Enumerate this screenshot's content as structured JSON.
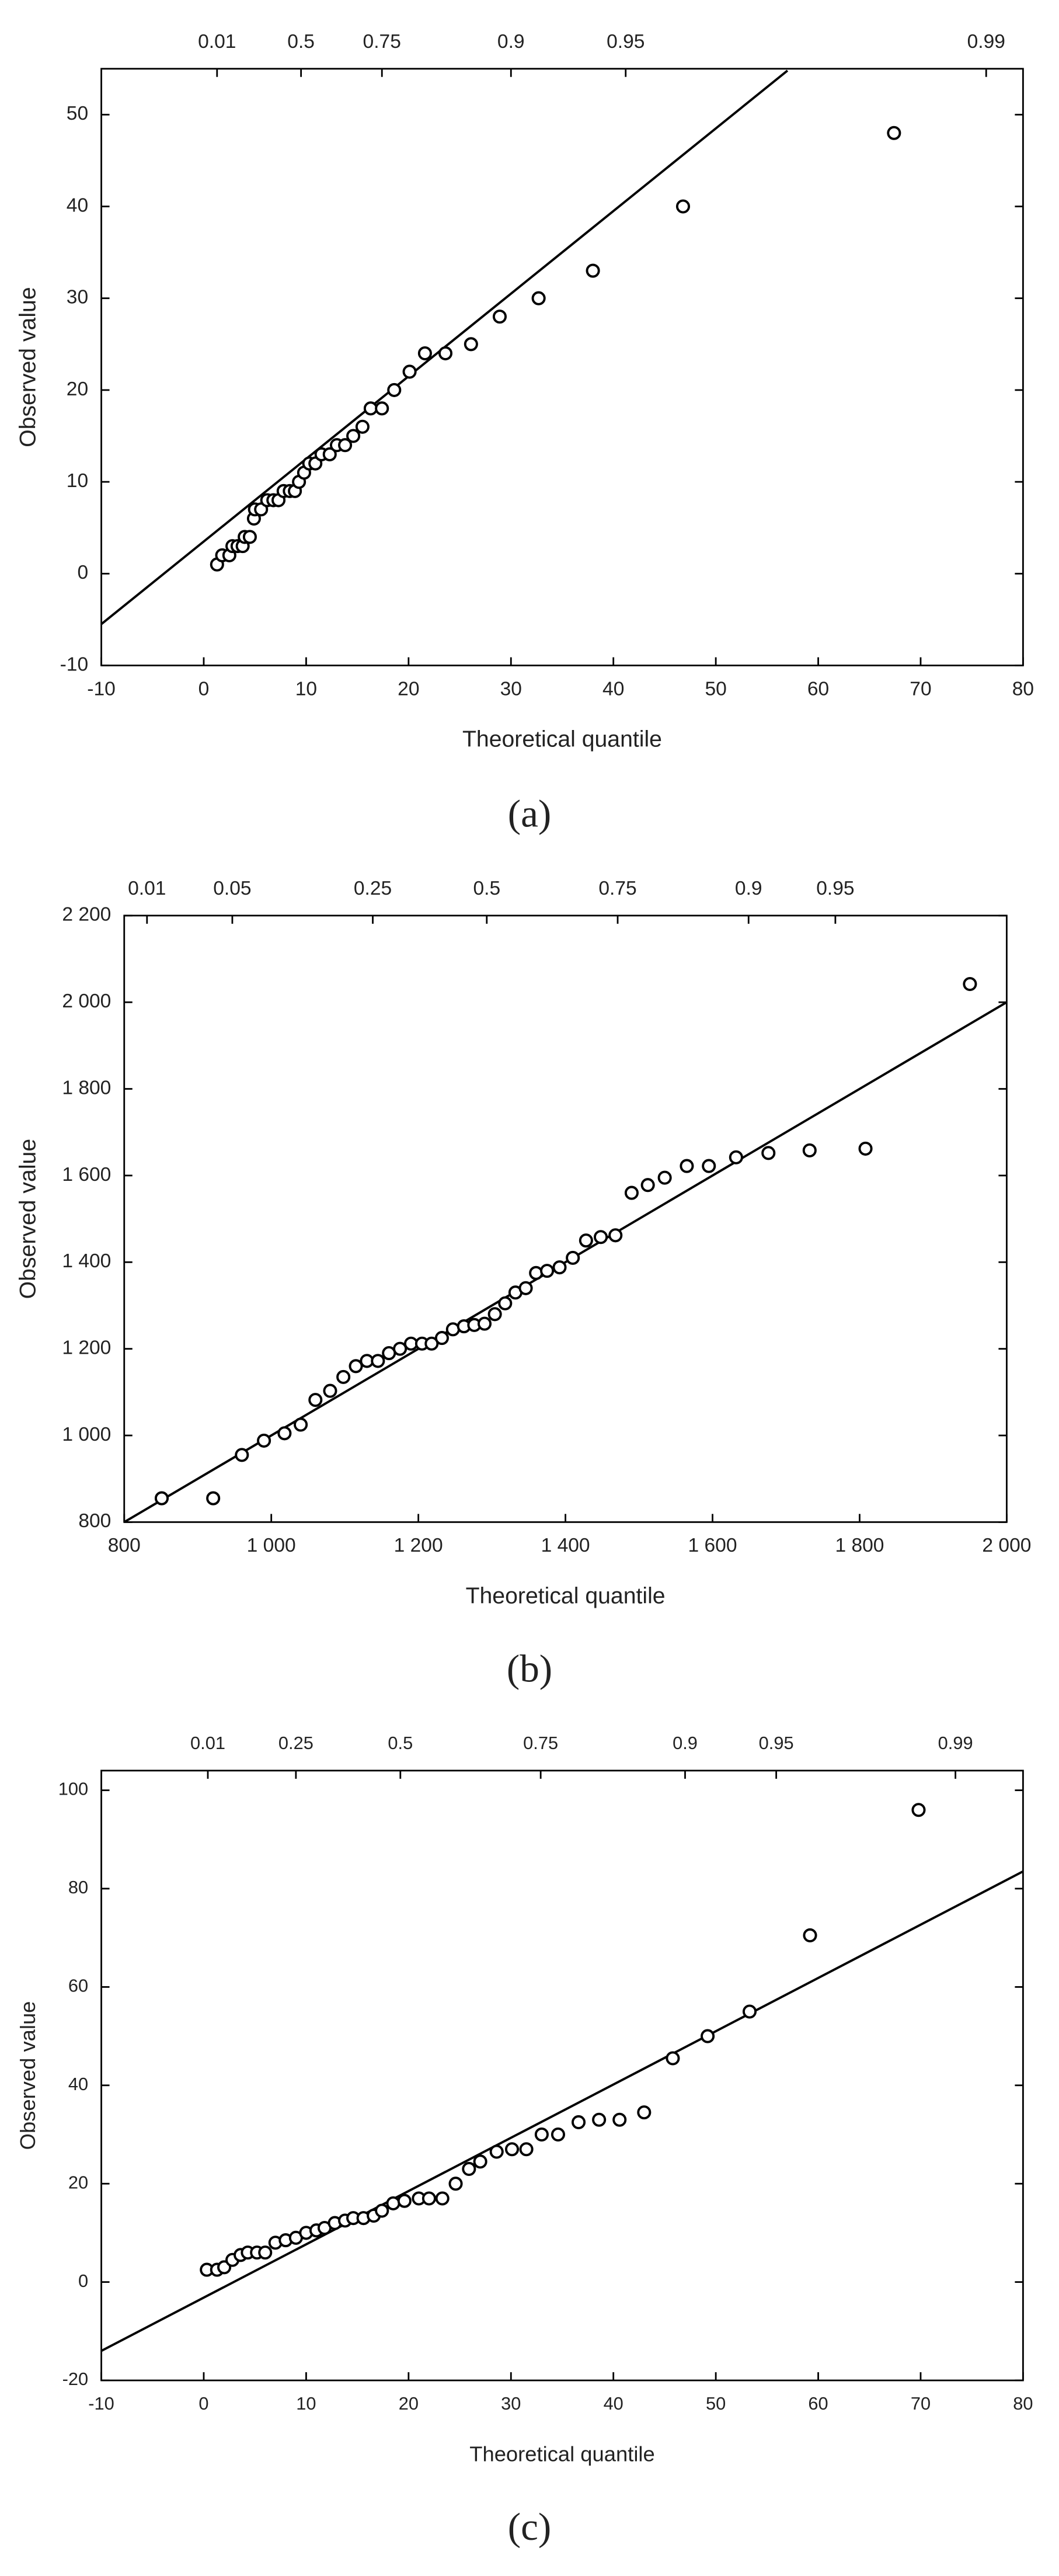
{
  "chart_data": [
    {
      "type": "scatter",
      "label": "(a)",
      "xlabel": "Theoretical quantile",
      "ylabel": "Observed value",
      "xlim": [
        -10,
        80
      ],
      "ylim": [
        -10,
        55
      ],
      "xticks": [
        -10,
        0,
        10,
        20,
        30,
        40,
        50,
        60,
        70,
        80
      ],
      "yticks": [
        -10,
        0,
        10,
        20,
        30,
        40,
        50
      ],
      "x2ticks": [
        {
          "value": 1.3,
          "label": "0.01"
        },
        {
          "value": 9.5,
          "label": "0.5"
        },
        {
          "value": 17.4,
          "label": "0.75"
        },
        {
          "value": 30,
          "label": "0.9"
        },
        {
          "value": 41.2,
          "label": "0.95"
        },
        {
          "value": 76.4,
          "label": "0.99"
        }
      ],
      "x": [
        1.3,
        1.8,
        2.5,
        2.8,
        3.3,
        3.8,
        4,
        4.5,
        4.9,
        5,
        5.6,
        6.2,
        6.8,
        7.3,
        7.8,
        8.4,
        8.9,
        9.3,
        9.8,
        10.3,
        10.9,
        11.5,
        12.3,
        13,
        13.8,
        14.6,
        15.5,
        16.3,
        17.4,
        18.6,
        20.1,
        21.6,
        23.6,
        26.1,
        28.9,
        32.7,
        38,
        46.8,
        67.4
      ],
      "values": [
        1,
        2,
        2,
        3,
        3,
        3,
        4,
        4,
        6,
        7,
        7,
        8,
        8,
        8,
        9,
        9,
        9,
        10,
        11,
        12,
        12,
        13,
        13,
        14,
        14,
        15,
        16,
        18,
        18,
        20,
        22,
        24,
        24,
        25,
        28,
        30,
        33,
        40,
        48
      ],
      "fit_line": {
        "x": [
          -10,
          57
        ],
        "values": [
          -5.5,
          54.8
        ]
      }
    },
    {
      "type": "scatter",
      "label": "(b)",
      "xlabel": "Theoretical quantile",
      "ylabel": "Observed value",
      "xlim": [
        800,
        2000
      ],
      "ylim": [
        800,
        2200
      ],
      "xticks": [
        800,
        {
          "value": 1000,
          "label": "1 000"
        },
        {
          "value": 1200,
          "label": "1 200"
        },
        {
          "value": 1400,
          "label": "1 400"
        },
        {
          "value": 1600,
          "label": "1 600"
        },
        {
          "value": 1800,
          "label": "1 800"
        },
        {
          "value": 2000,
          "label": "2 000"
        }
      ],
      "yticks": [
        800,
        {
          "value": 1000,
          "label": "1 000"
        },
        {
          "value": 1200,
          "label": "1 200"
        },
        {
          "value": 1400,
          "label": "1 400"
        },
        {
          "value": 1600,
          "label": "1 600"
        },
        {
          "value": 1800,
          "label": "1 800"
        },
        {
          "value": 2000,
          "label": "2 000"
        },
        {
          "value": 2200,
          "label": "2 200"
        }
      ],
      "x2ticks": [
        {
          "value": 831,
          "label": "0.01"
        },
        {
          "value": 947,
          "label": "0.05"
        },
        {
          "value": 1138,
          "label": "0.25"
        },
        {
          "value": 1293,
          "label": "0.5"
        },
        {
          "value": 1471,
          "label": "0.75"
        },
        {
          "value": 1649,
          "label": "0.9"
        },
        {
          "value": 1767,
          "label": "0.95"
        }
      ],
      "x": [
        851,
        921,
        960,
        990,
        1018,
        1040,
        1060,
        1080,
        1098,
        1115,
        1130,
        1145,
        1160,
        1175,
        1190,
        1205,
        1218,
        1232,
        1247,
        1262,
        1276,
        1290,
        1304,
        1318,
        1332,
        1346,
        1360,
        1375,
        1392,
        1410,
        1428,
        1448,
        1468,
        1490,
        1512,
        1535,
        1565,
        1595,
        1632,
        1676,
        1732,
        1808,
        1950
      ],
      "values": [
        855,
        855,
        955,
        988,
        1005,
        1025,
        1082,
        1103,
        1135,
        1160,
        1172,
        1172,
        1190,
        1200,
        1212,
        1212,
        1212,
        1225,
        1245,
        1252,
        1255,
        1258,
        1280,
        1305,
        1330,
        1340,
        1375,
        1380,
        1388,
        1410,
        1450,
        1458,
        1462,
        1560,
        1578,
        1595,
        1622,
        1622,
        1642,
        1652,
        1658,
        1662,
        2042
      ],
      "fit_line": {
        "x": [
          800,
          2000
        ],
        "values": [
          800,
          2000
        ]
      }
    },
    {
      "type": "scatter",
      "label": "(c)",
      "xlabel": "Theoretical quantile",
      "ylabel": "Observed value",
      "xlim": [
        -10,
        80
      ],
      "ylim": [
        -20,
        104
      ],
      "xticks": [
        -10,
        0,
        10,
        20,
        30,
        40,
        50,
        60,
        70,
        80
      ],
      "yticks": [
        -20,
        0,
        20,
        40,
        60,
        80,
        100
      ],
      "x2ticks": [
        {
          "value": 0.4,
          "label": "0.01"
        },
        {
          "value": 9,
          "label": "0.25"
        },
        {
          "value": 19.2,
          "label": "0.5"
        },
        {
          "value": 32.9,
          "label": "0.75"
        },
        {
          "value": 47,
          "label": "0.9"
        },
        {
          "value": 55.9,
          "label": "0.95"
        },
        {
          "value": 73.4,
          "label": "0.99"
        }
      ],
      "x": [
        0.3,
        1.3,
        2,
        2.8,
        3.6,
        4.3,
        5.2,
        6,
        7,
        8,
        9,
        10,
        11,
        11.8,
        12.8,
        13.8,
        14.6,
        15.6,
        16.6,
        17.4,
        18.5,
        19.6,
        21,
        22,
        23.3,
        24.6,
        25.9,
        27,
        28.6,
        30.1,
        31.5,
        33,
        34.6,
        36.6,
        38.6,
        40.6,
        43,
        45.8,
        49.2,
        53.3,
        59.2,
        69.8
      ],
      "values": [
        2.5,
        2.5,
        3,
        4.5,
        5.5,
        6,
        6,
        6,
        8,
        8.5,
        9,
        10,
        10.5,
        11,
        12,
        12.5,
        13,
        13,
        13.5,
        14.5,
        16,
        16.5,
        17,
        17,
        17,
        20,
        23,
        24.5,
        26.5,
        27,
        27,
        30,
        30,
        32.5,
        33,
        33,
        34.5,
        45.5,
        50,
        55,
        70.5,
        96
      ],
      "fit_line": {
        "x": [
          -10,
          80
        ],
        "values": [
          -14,
          83.5
        ]
      }
    }
  ]
}
